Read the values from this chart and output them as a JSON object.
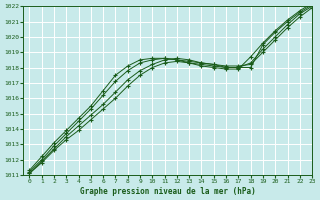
{
  "title": "Graphe pression niveau de la mer (hPa)",
  "bg_color": "#c8eaea",
  "grid_color": "#ffffff",
  "line_color": "#1a5c1a",
  "marker_color": "#1a5c1a",
  "xlim": [
    -0.5,
    23
  ],
  "ylim": [
    1011,
    1022
  ],
  "xticks": [
    0,
    1,
    2,
    3,
    4,
    5,
    6,
    7,
    8,
    9,
    10,
    11,
    12,
    13,
    14,
    15,
    16,
    17,
    18,
    19,
    20,
    21,
    22,
    23
  ],
  "yticks": [
    1011,
    1012,
    1013,
    1014,
    1015,
    1016,
    1017,
    1018,
    1019,
    1020,
    1021,
    1022
  ],
  "series": [
    [
      1011.1,
      1011.8,
      1012.6,
      1013.3,
      1013.9,
      1014.6,
      1015.3,
      1016.0,
      1016.8,
      1017.5,
      1018.0,
      1018.3,
      1018.4,
      1018.3,
      1018.2,
      1018.1,
      1018.0,
      1018.0,
      1018.0,
      1019.5,
      1020.3,
      1021.0,
      1021.6,
      1022.1
    ],
    [
      1011.1,
      1011.9,
      1012.7,
      1013.5,
      1014.2,
      1014.9,
      1015.6,
      1016.4,
      1017.2,
      1017.8,
      1018.2,
      1018.5,
      1018.6,
      1018.5,
      1018.3,
      1018.2,
      1018.1,
      1018.1,
      1018.2,
      1019.0,
      1019.8,
      1020.6,
      1021.3,
      1021.9
    ],
    [
      1011.2,
      1012.0,
      1012.9,
      1013.7,
      1014.5,
      1015.3,
      1016.2,
      1017.1,
      1017.8,
      1018.3,
      1018.5,
      1018.6,
      1018.5,
      1018.4,
      1018.3,
      1018.2,
      1018.0,
      1018.0,
      1018.3,
      1019.2,
      1020.0,
      1020.8,
      1021.5,
      1022.0
    ],
    [
      1011.3,
      1012.2,
      1013.1,
      1013.9,
      1014.7,
      1015.5,
      1016.5,
      1017.5,
      1018.1,
      1018.5,
      1018.6,
      1018.6,
      1018.5,
      1018.3,
      1018.1,
      1018.0,
      1017.9,
      1017.9,
      1018.7,
      1019.6,
      1020.4,
      1021.1,
      1021.7,
      1022.2
    ]
  ]
}
